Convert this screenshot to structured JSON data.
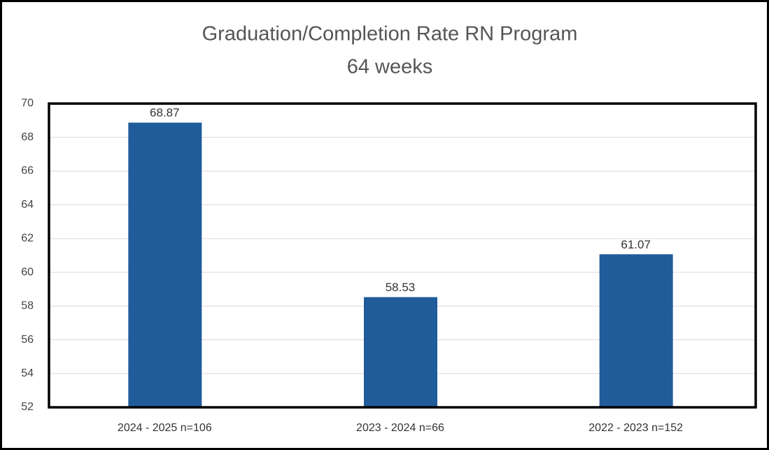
{
  "chart_data": {
    "type": "bar",
    "title": "Graduation/Completion Rate RN Program",
    "subtitle": "64 weeks",
    "categories": [
      "2024 - 2025 n=106",
      "2023 - 2024 n=66",
      "2022 - 2023 n=152"
    ],
    "values": [
      68.87,
      58.53,
      61.07
    ],
    "color": "#1f5c99",
    "ylim": [
      52,
      70
    ],
    "yticks": [
      52,
      54,
      56,
      58,
      60,
      62,
      64,
      66,
      68,
      70
    ],
    "grid": true
  }
}
